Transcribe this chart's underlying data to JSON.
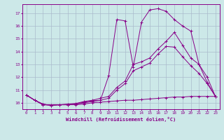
{
  "xlabel": "Windchill (Refroidissement éolien,°C)",
  "bg_color": "#cce8e8",
  "line_color": "#880088",
  "grid_color": "#aabbcc",
  "xlim": [
    -0.5,
    23.5
  ],
  "ylim": [
    9.5,
    17.7
  ],
  "yticks": [
    10,
    11,
    12,
    13,
    14,
    15,
    16,
    17
  ],
  "xticks": [
    0,
    1,
    2,
    3,
    4,
    5,
    6,
    7,
    8,
    9,
    10,
    11,
    12,
    13,
    14,
    15,
    16,
    17,
    18,
    19,
    20,
    21,
    22,
    23
  ],
  "lines": [
    {
      "x": [
        0,
        1,
        2,
        3,
        4,
        5,
        6,
        7,
        8,
        9,
        10,
        11,
        12,
        13,
        14,
        15,
        16,
        17,
        18,
        19,
        20,
        21,
        22,
        23
      ],
      "y": [
        10.6,
        10.2,
        9.9,
        9.8,
        9.85,
        9.85,
        9.85,
        9.9,
        10.0,
        10.05,
        10.1,
        10.15,
        10.2,
        10.2,
        10.25,
        10.3,
        10.35,
        10.4,
        10.45,
        10.45,
        10.5,
        10.5,
        10.5,
        10.5
      ]
    },
    {
      "x": [
        0,
        1,
        2,
        3,
        4,
        5,
        6,
        7,
        8,
        9,
        10,
        11,
        12,
        13,
        14,
        15,
        16,
        17,
        18,
        19,
        20,
        21,
        22,
        23
      ],
      "y": [
        10.6,
        10.2,
        9.9,
        9.8,
        9.85,
        9.85,
        9.9,
        10.05,
        10.15,
        10.2,
        10.35,
        11.0,
        11.5,
        12.5,
        12.8,
        13.1,
        13.8,
        14.4,
        14.35,
        13.6,
        12.9,
        12.3,
        11.5,
        10.5
      ]
    },
    {
      "x": [
        0,
        1,
        2,
        3,
        4,
        5,
        6,
        7,
        8,
        9,
        10,
        11,
        12,
        13,
        14,
        15,
        16,
        17,
        18,
        19,
        20,
        21,
        22,
        23
      ],
      "y": [
        10.6,
        10.2,
        9.85,
        9.8,
        9.85,
        9.85,
        9.9,
        10.0,
        10.1,
        10.2,
        12.1,
        16.5,
        16.4,
        12.8,
        16.3,
        17.25,
        17.35,
        17.15,
        16.5,
        16.0,
        15.6,
        13.0,
        11.6,
        10.5
      ]
    },
    {
      "x": [
        0,
        1,
        2,
        3,
        4,
        5,
        6,
        7,
        8,
        9,
        10,
        11,
        12,
        13,
        14,
        15,
        16,
        17,
        18,
        19,
        20,
        21,
        22,
        23
      ],
      "y": [
        10.6,
        10.2,
        9.85,
        9.85,
        9.85,
        9.9,
        9.95,
        10.1,
        10.2,
        10.35,
        10.5,
        11.2,
        11.7,
        13.0,
        13.2,
        13.5,
        14.2,
        14.8,
        15.5,
        14.5,
        13.5,
        13.0,
        12.0,
        10.5
      ]
    }
  ]
}
